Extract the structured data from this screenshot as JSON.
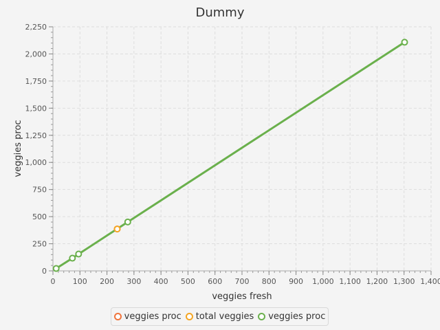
{
  "chart_data": {
    "type": "line",
    "title": "Dummy",
    "xlabel": "veggies fresh",
    "ylabel": "veggies proc",
    "xlim": [
      0,
      1400
    ],
    "ylim": [
      0,
      2250
    ],
    "x_ticks": [
      0,
      100,
      200,
      300,
      400,
      500,
      600,
      700,
      800,
      900,
      1000,
      1100,
      1200,
      1300,
      1400
    ],
    "y_ticks": [
      0,
      250,
      500,
      750,
      1000,
      1250,
      1500,
      1750,
      2000,
      2250
    ],
    "x_tick_labels": [
      "0",
      "100",
      "200",
      "300",
      "400",
      "500",
      "600",
      "700",
      "800",
      "900",
      "1,000",
      "1,100",
      "1,200",
      "1,300",
      "1,400"
    ],
    "y_tick_labels": [
      "0",
      "250",
      "500",
      "750",
      "1,000",
      "1,250",
      "1,500",
      "1,750",
      "2,000",
      "2,250"
    ],
    "grid": true,
    "legend_position": "bottom",
    "series": [
      {
        "name": "veggies proc",
        "color": "#f0743c",
        "mode": "markers",
        "points": [
          [
            238,
            386
          ]
        ]
      },
      {
        "name": "total veggies",
        "color": "#f5a623",
        "mode": "markers",
        "points": [
          [
            238,
            386
          ]
        ]
      },
      {
        "name": "veggies proc",
        "color": "#6ab04c",
        "mode": "line+markers",
        "points": [
          [
            12,
            22
          ],
          [
            72,
            117
          ],
          [
            95,
            155
          ],
          [
            277,
            451
          ],
          [
            1302,
            2108
          ]
        ]
      }
    ]
  }
}
